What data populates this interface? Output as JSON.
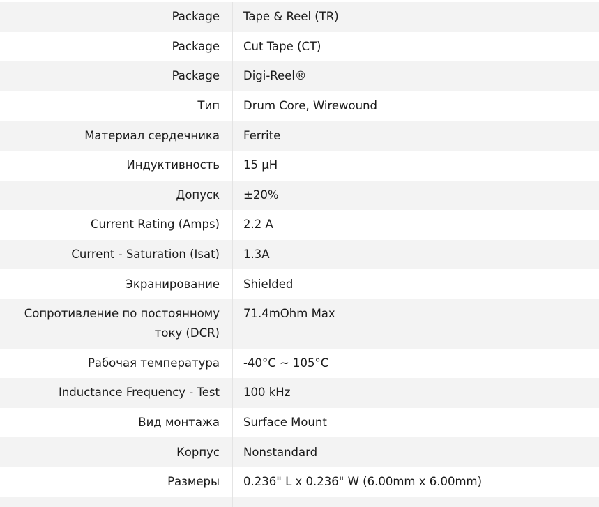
{
  "specs": [
    {
      "label": "Package",
      "value": "Tape & Reel (TR)"
    },
    {
      "label": "Package",
      "value": "Cut Tape (CT)"
    },
    {
      "label": "Package",
      "value": "Digi-Reel®"
    },
    {
      "label": "Тип",
      "value": "Drum Core, Wirewound"
    },
    {
      "label": "Материал сердечника",
      "value": "Ferrite"
    },
    {
      "label": "Индуктивность",
      "value": "15 µH"
    },
    {
      "label": "Допуск",
      "value": "±20%"
    },
    {
      "label": "Current Rating (Amps)",
      "value": "2.2 A"
    },
    {
      "label": "Current - Saturation (Isat)",
      "value": "1.3A"
    },
    {
      "label": "Экранирование",
      "value": "Shielded"
    },
    {
      "label": "Сопротивление по постоянному току (DCR)",
      "value": "71.4mOhm Max"
    },
    {
      "label": "Рабочая температура",
      "value": "-40°C ~ 105°C"
    },
    {
      "label": "Inductance Frequency - Test",
      "value": "100 kHz"
    },
    {
      "label": "Вид монтажа",
      "value": "Surface Mount"
    },
    {
      "label": "Корпус",
      "value": "Nonstandard"
    },
    {
      "label": "Размеры",
      "value": "0.236\" L x 0.236\" W (6.00mm x 6.00mm)"
    },
    {
      "label": "",
      "value": ""
    }
  ]
}
